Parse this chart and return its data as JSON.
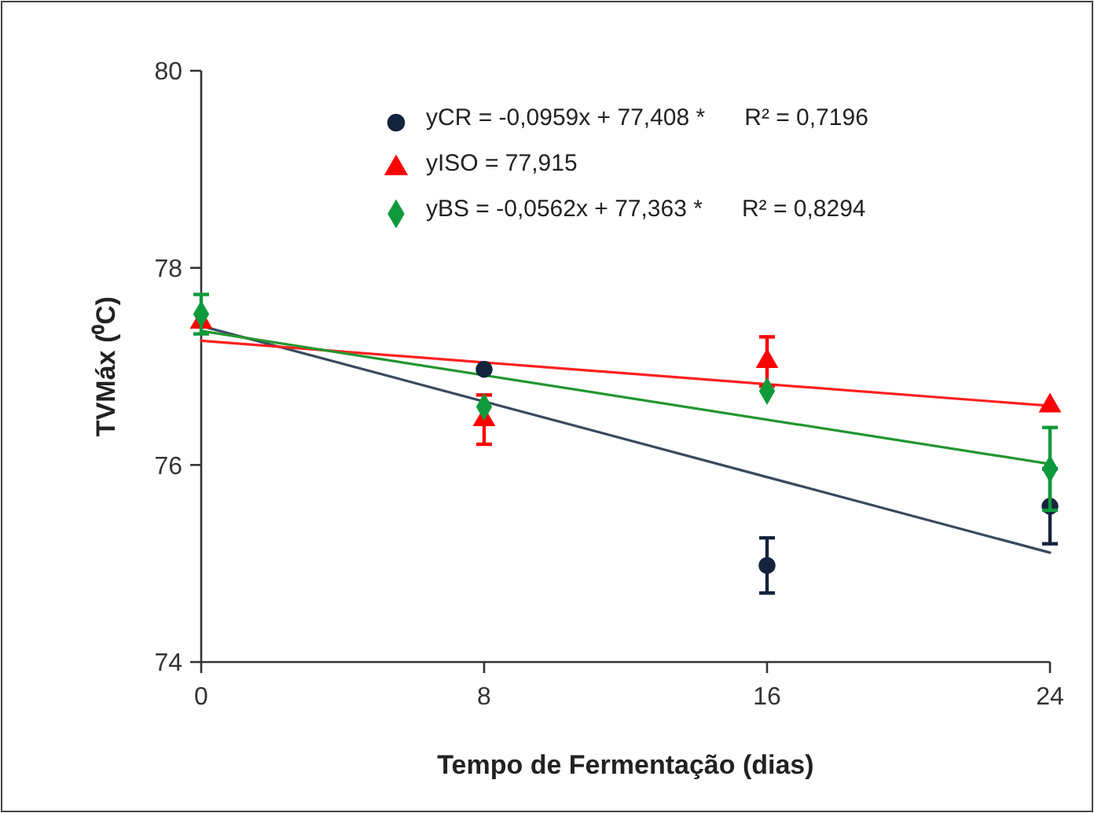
{
  "chart_data": {
    "type": "scatter",
    "xlabel": "Tempo de Fermentação (dias)",
    "ylabel": "TVMáx (⁰C)",
    "xlim": [
      0,
      24
    ],
    "xticks": [
      0,
      8,
      16,
      24
    ],
    "ylim": [
      74,
      80
    ],
    "yticks": [
      74,
      76,
      78,
      80
    ],
    "grid": false,
    "legend": "top right",
    "series": [
      {
        "name": "yCR = -0,0959x + 77,408 *      R² = 0,7196",
        "color": "#14243e",
        "marker": "circle",
        "x": [
          8,
          16,
          24
        ],
        "values": [
          76.97,
          74.98,
          75.58
        ],
        "errors": [
          null,
          0.28,
          0.38
        ]
      },
      {
        "name": "yISO = 77,915",
        "color": "#ff0000",
        "marker": "triangle",
        "x": [
          0,
          8,
          16,
          24
        ],
        "values": [
          77.45,
          76.46,
          77.05,
          76.6
        ],
        "errors": [
          null,
          0.25,
          0.25,
          null
        ]
      },
      {
        "name": "yBS = -0,0562x + 77,363 *      R² = 0,8294",
        "color": "#0e9a3c",
        "marker": "diamond",
        "x": [
          0,
          8,
          16,
          24
        ],
        "values": [
          77.53,
          76.59,
          76.75,
          75.96
        ],
        "errors": [
          0.2,
          null,
          null,
          0.42
        ]
      },
      {
        "type": "line",
        "color": "#3a4a5e",
        "marker": "none",
        "x": [
          0,
          24
        ],
        "values": [
          77.41,
          75.11
        ]
      },
      {
        "type": "line",
        "color": "#ff2020",
        "marker": "none",
        "x": [
          0,
          24
        ],
        "values": [
          77.26,
          76.6
        ]
      },
      {
        "type": "line",
        "color": "#22962e",
        "marker": "none",
        "x": [
          0,
          24
        ],
        "values": [
          77.36,
          76.01
        ]
      }
    ]
  }
}
